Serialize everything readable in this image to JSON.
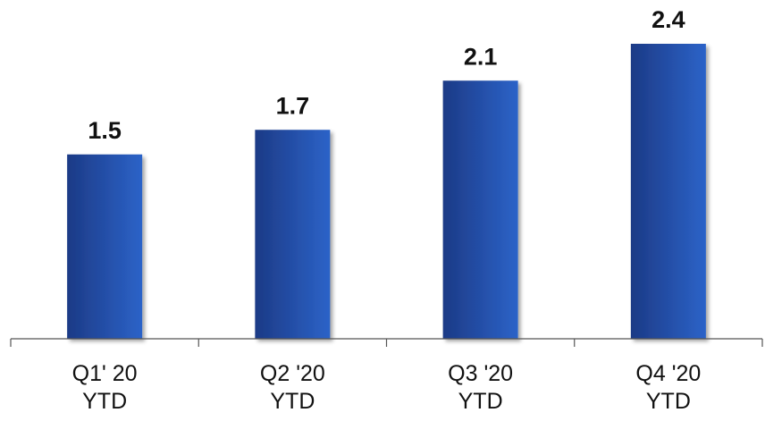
{
  "chart_data": {
    "type": "bar",
    "title": "",
    "xlabel": "",
    "ylabel": "",
    "categories": [
      [
        "Q1' 20",
        "YTD"
      ],
      [
        "Q2 '20",
        "YTD"
      ],
      [
        "Q3 '20",
        "YTD"
      ],
      [
        "Q4 '20",
        "YTD"
      ]
    ],
    "values": [
      1.5,
      1.7,
      2.1,
      2.4
    ],
    "value_labels": [
      "1.5",
      "1.7",
      "2.1",
      "2.4"
    ],
    "ylim": [
      0,
      2.4
    ],
    "grid": false,
    "legend": "none",
    "colors": {
      "bar_dark": "#1c3a86",
      "bar_light": "#2c63c8",
      "axis": "#555555",
      "text": "#111111"
    }
  }
}
